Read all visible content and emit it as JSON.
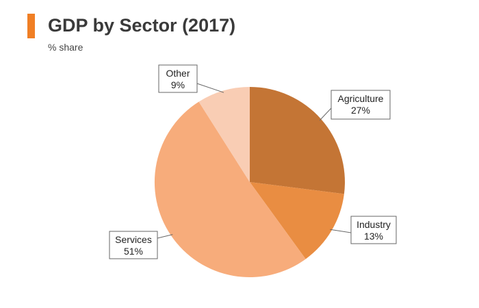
{
  "header": {
    "title": "GDP by Sector (2017)",
    "subtitle": "% share",
    "accent_color": "#f07f25"
  },
  "chart_data": {
    "type": "pie",
    "title": "GDP by Sector (2017)",
    "subtitle": "% share",
    "start_angle_deg": 0,
    "direction": "clockwise",
    "slices": [
      {
        "label": "Agriculture",
        "value": 27,
        "display": "27%",
        "color": "#c47535"
      },
      {
        "label": "Industry",
        "value": 13,
        "display": "13%",
        "color": "#e98d42"
      },
      {
        "label": "Services",
        "value": 51,
        "display": "51%",
        "color": "#f7ac7b"
      },
      {
        "label": "Other",
        "value": 9,
        "display": "9%",
        "color": "#f9cdb4"
      }
    ]
  }
}
